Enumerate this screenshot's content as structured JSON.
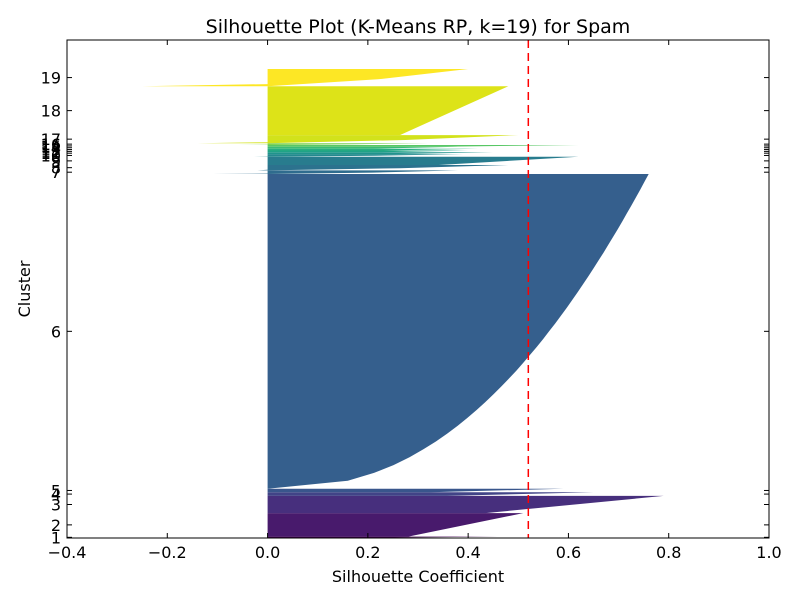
{
  "chart_data": {
    "type": "silhouette",
    "title": "Silhouette Plot (K-Means RP, k=19) for Spam",
    "xlabel": "Silhouette Coefficient",
    "ylabel": "Cluster",
    "xlim": [
      -0.4,
      1.0
    ],
    "xticks": [
      -0.4,
      -0.2,
      0.0,
      0.2,
      0.4,
      0.6,
      0.8,
      1.0
    ],
    "xtick_labels": [
      "−0.4",
      "−0.2",
      "0.0",
      "0.2",
      "0.4",
      "0.6",
      "0.8",
      "1.0"
    ],
    "average_silhouette": 0.52,
    "average_line_color": "#ff0000",
    "clusters": [
      {
        "label": "1",
        "start": 0.0,
        "end": 0.3,
        "color": "#440154",
        "max": 0.46,
        "min": -0.19
      },
      {
        "label": "2",
        "start": 0.3,
        "end": 5.5,
        "color": "#481a6c",
        "max": 0.51,
        "min": 0.0
      },
      {
        "label": "3",
        "start": 5.5,
        "end": 9.3,
        "color": "#472f7d",
        "max": 0.79,
        "min": 0.0
      },
      {
        "label": "4",
        "start": 9.3,
        "end": 10.1,
        "color": "#414487",
        "max": 0.65,
        "min": 0.0
      },
      {
        "label": "5",
        "start": 10.1,
        "end": 10.9,
        "color": "#39568c",
        "max": 0.59,
        "min": 0.0
      },
      {
        "label": "6",
        "start": 10.9,
        "end": 80.4,
        "color": "#355f8d",
        "max": 0.76,
        "min": 0.0
      },
      {
        "label": "7",
        "start": 80.4,
        "end": 81.2,
        "color": "#2f6c8e",
        "max": 0.38,
        "min": -0.11
      },
      {
        "label": "8",
        "start": 81.2,
        "end": 82.4,
        "color": "#2c728e",
        "max": 0.48,
        "min": -0.02
      },
      {
        "label": "9",
        "start": 82.4,
        "end": 84.2,
        "color": "#287c8e",
        "max": 0.62,
        "min": 0.0
      },
      {
        "label": "10",
        "start": 84.2,
        "end": 84.8,
        "color": "#23898e",
        "max": 0.39,
        "min": -0.03
      },
      {
        "label": "11",
        "start": 84.8,
        "end": 85.2,
        "color": "#1f948c",
        "max": 0.45,
        "min": 0.0
      },
      {
        "label": "12",
        "start": 85.2,
        "end": 85.6,
        "color": "#20a386",
        "max": 0.4,
        "min": 0.0
      },
      {
        "label": "13",
        "start": 85.6,
        "end": 86.0,
        "color": "#28ae80",
        "max": 0.42,
        "min": 0.0
      },
      {
        "label": "14",
        "start": 86.0,
        "end": 86.4,
        "color": "#3bbb75",
        "max": 0.38,
        "min": 0.0
      },
      {
        "label": "15",
        "start": 86.4,
        "end": 86.8,
        "color": "#58c765",
        "max": 0.62,
        "min": 0.0
      },
      {
        "label": "16",
        "start": 86.8,
        "end": 87.2,
        "color": "#7ad151",
        "max": 0.32,
        "min": -0.06
      },
      {
        "label": "17",
        "start": 87.2,
        "end": 89.0,
        "color": "#d2e21b",
        "max": 0.5,
        "min": -0.14
      },
      {
        "label": "18",
        "start": 89.0,
        "end": 99.8,
        "color": "#dde318",
        "max": 0.48,
        "min": 0.0
      },
      {
        "label": "19",
        "start": 99.8,
        "end": 103.6,
        "color": "#fde725",
        "max": 0.4,
        "min": -0.25
      }
    ]
  }
}
